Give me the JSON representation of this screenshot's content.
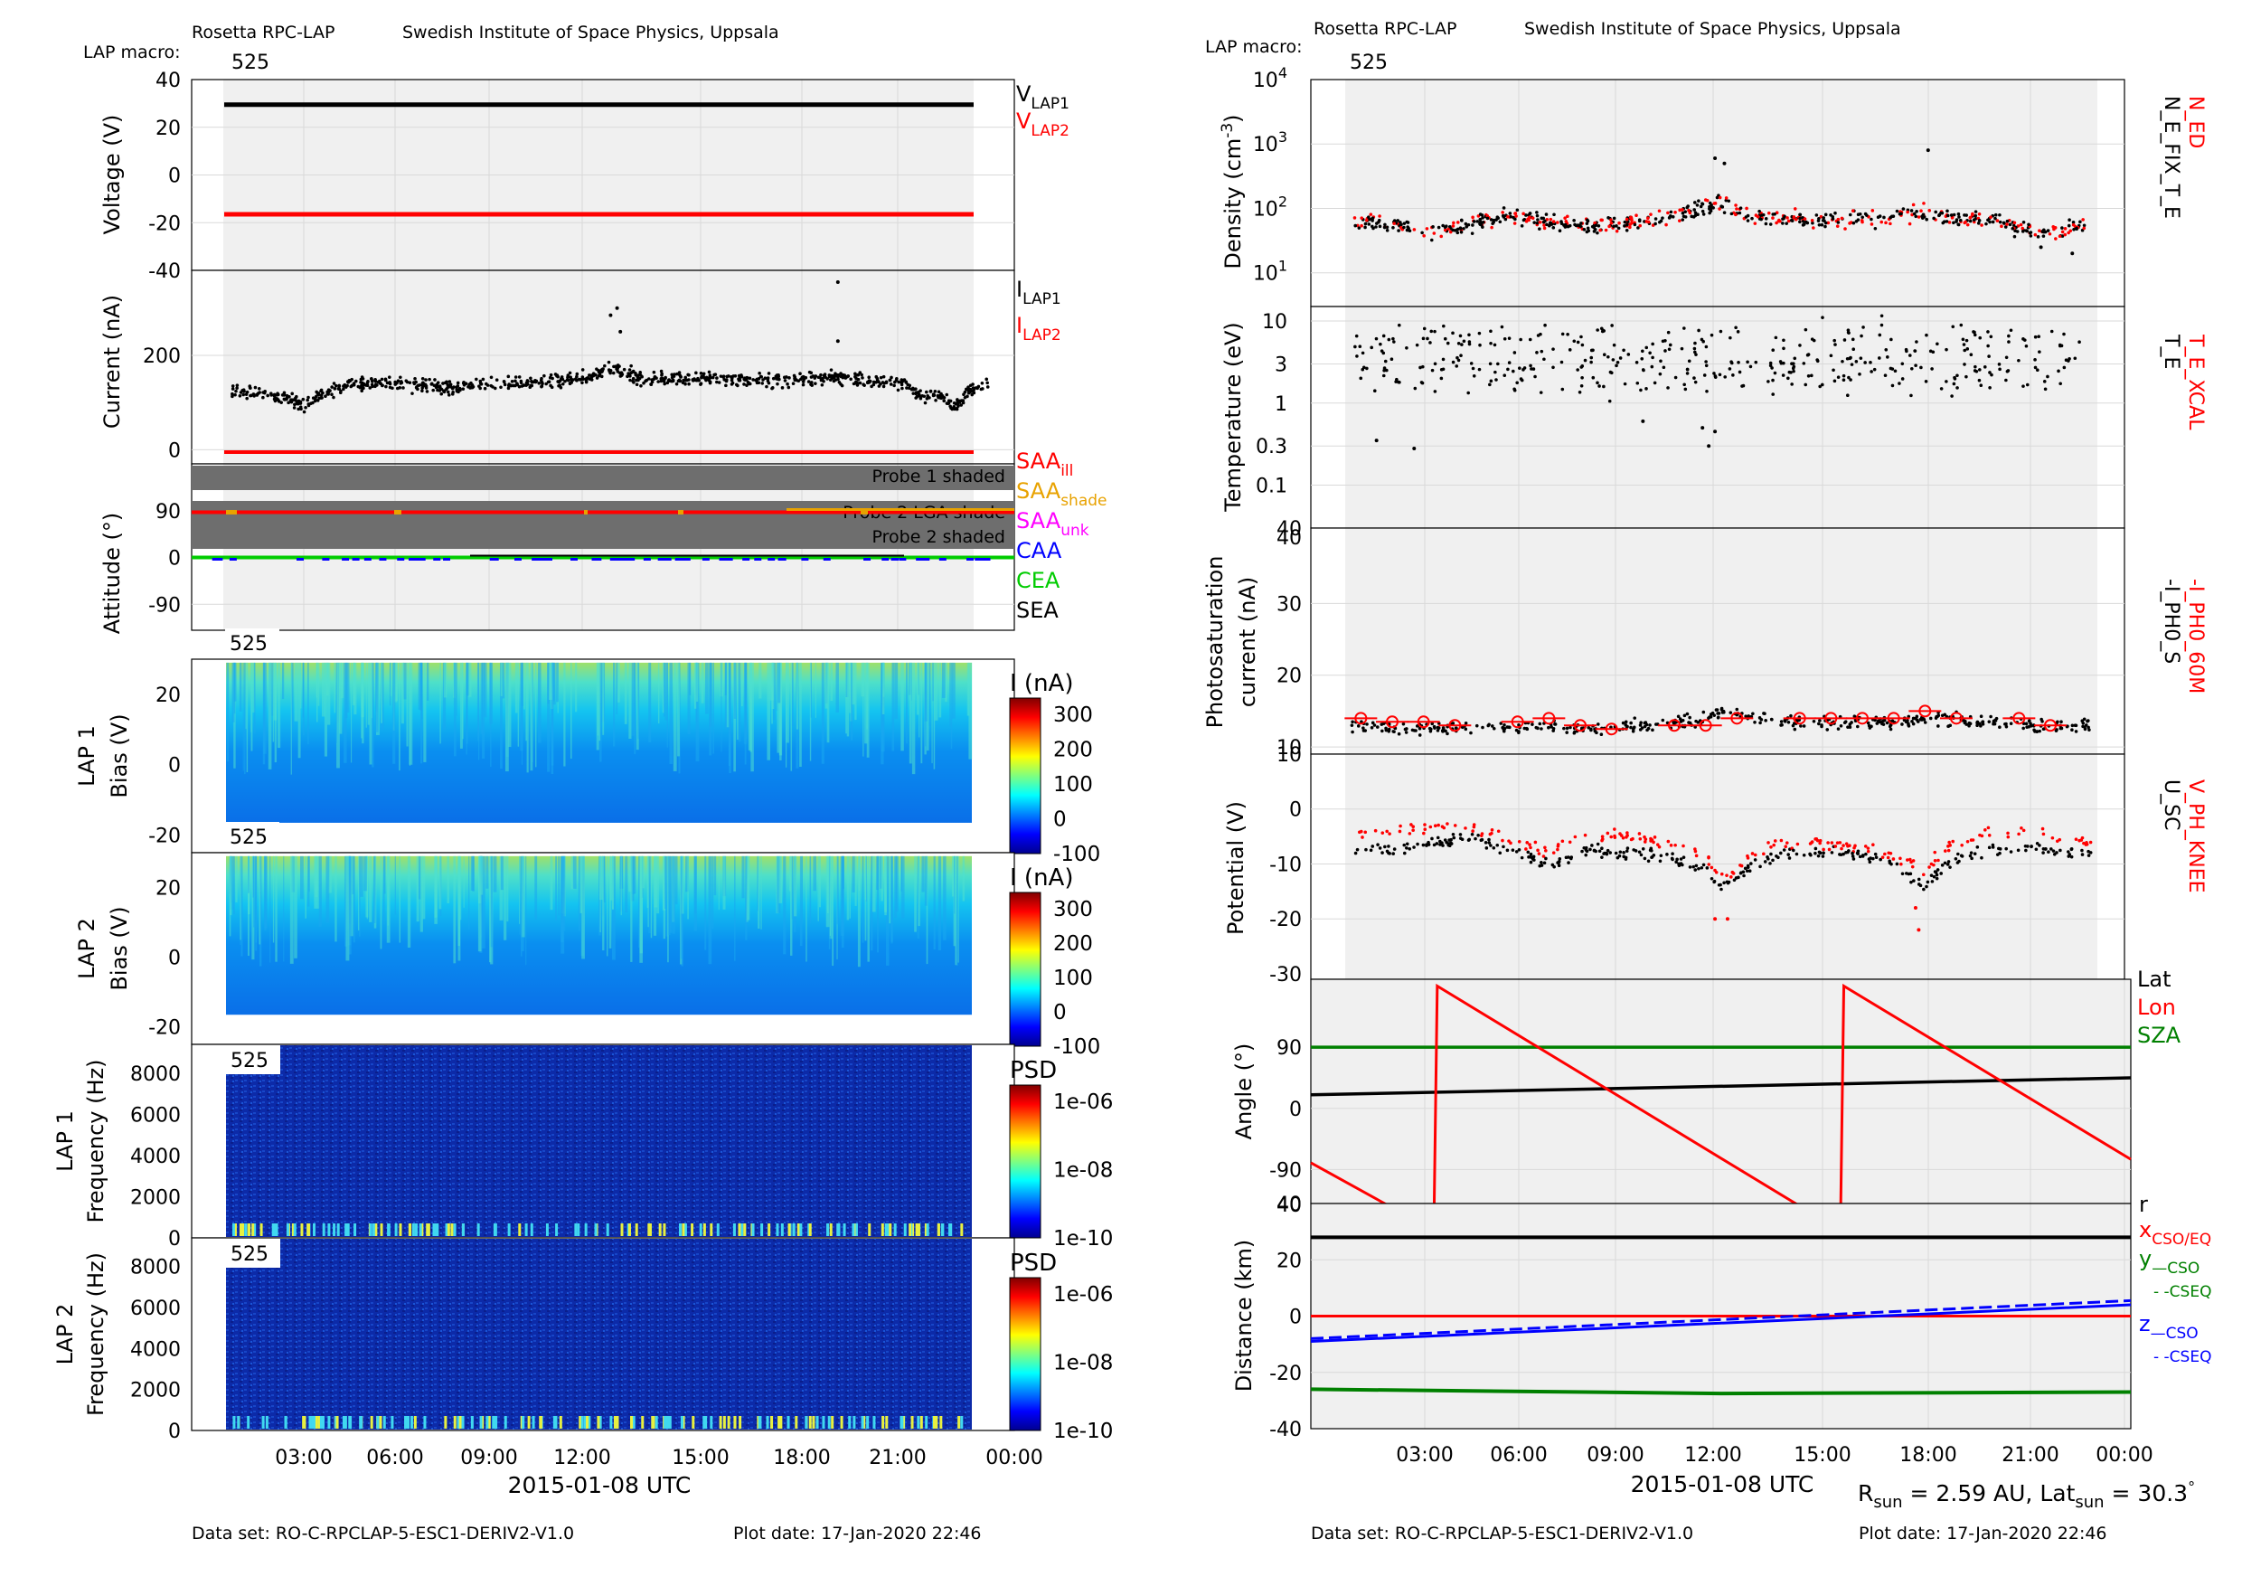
{
  "header": {
    "left": {
      "title": "Rosetta RPC-LAP",
      "institute": "Swedish Institute of Space Physics, Uppsala",
      "macro_label": "LAP macro:",
      "macro_value": "525"
    },
    "right": {
      "title": "Rosetta RPC-LAP",
      "institute": "Swedish Institute of Space Physics, Uppsala",
      "macro_label": "LAP macro:",
      "macro_value": "525"
    }
  },
  "footer": {
    "left": {
      "dataset": "Data set: RO-C-RPCLAP-5-ESC1-DERIV2-V1.0",
      "plotdate": "Plot date: 17-Jan-2020 22:46"
    },
    "right": {
      "dataset": "Data set: RO-C-RPCLAP-5-ESC1-DERIV2-V1.0",
      "plotdate": "Plot date: 17-Jan-2020 22:46"
    }
  },
  "xaxis": {
    "ticks": [
      "03:00",
      "06:00",
      "09:00",
      "12:00",
      "15:00",
      "18:00",
      "21:00",
      "00:00"
    ],
    "label": "2015-01-08 UTC"
  },
  "rsun_note": {
    "r_sym": "R",
    "r_sub": "sun",
    "r_val": " = 2.59 AU, Lat",
    "lat_sub": "sun",
    "lat_val": " = 30.3",
    "deg": "°"
  },
  "colors": {
    "black": "#000000",
    "red": "#ff0000",
    "orange": "#e8a200",
    "magenta": "#ff00ff",
    "blue": "#0000ff",
    "green": "#00cc00",
    "darkgreen": "#008000",
    "panel_bg": "#f0f0f0",
    "shade": "#6e6e6e"
  },
  "chart_data": [
    {
      "id": "voltage",
      "type": "line",
      "ylabel": "Voltage (V)",
      "ylim": [
        -40,
        40
      ],
      "yticks": [
        "40",
        "20",
        "0",
        "-20",
        "-40"
      ],
      "series": [
        {
          "name": "V_LAP1",
          "value": 29.5,
          "color": "#000000"
        },
        {
          "name": "V_LAP2",
          "value": -16.5,
          "color": "#ff0000"
        }
      ],
      "legend": [
        {
          "main": "V",
          "sub": "LAP1",
          "color": "#000000"
        },
        {
          "main": "V",
          "sub": "LAP2",
          "color": "#ff0000"
        }
      ]
    },
    {
      "id": "current",
      "type": "scatter",
      "ylabel": "Current (nA)",
      "ylim": [
        -30,
        380
      ],
      "yticks": [
        "200",
        "0"
      ],
      "x": [
        0.5,
        1,
        1.5,
        2,
        2.5,
        3,
        3.5,
        4,
        5,
        6,
        7,
        8,
        9,
        10,
        11,
        11.5,
        12,
        12.5,
        13,
        14,
        15,
        16,
        17,
        18,
        18.5,
        19,
        20,
        21,
        21.5,
        22,
        22.5,
        23,
        23.5
      ],
      "values": [
        125,
        120,
        115,
        105,
        95,
        115,
        130,
        140,
        140,
        135,
        130,
        140,
        140,
        145,
        150,
        165,
        170,
        160,
        150,
        150,
        150,
        150,
        145,
        150,
        155,
        150,
        145,
        140,
        115,
        115,
        90,
        125,
        140
      ],
      "outliers": [
        [
          11.9,
          285
        ],
        [
          12.1,
          300
        ],
        [
          12.2,
          250
        ],
        [
          18.9,
          355
        ],
        [
          18.9,
          230
        ]
      ],
      "lap2_value": -5,
      "legend": [
        {
          "main": "I",
          "sub": "LAP1",
          "color": "#000000"
        },
        {
          "main": "I",
          "sub": "LAP2",
          "color": "#ff0000"
        }
      ]
    },
    {
      "id": "attitude",
      "type": "line",
      "ylabel": "Attitude (°)",
      "ylim": [
        -140,
        180
      ],
      "yticks": [
        "90",
        "0",
        "-90"
      ],
      "shade_labels": [
        "Probe 1 shaded",
        "Probe 2 LGA shade",
        "Probe 2 shaded"
      ],
      "saa_value": 87,
      "caa_value": 0,
      "cea_value": 0,
      "legend": [
        {
          "main": "SAA",
          "sub": "ill",
          "color": "#ff0000"
        },
        {
          "main": "SAA",
          "sub": "shade",
          "color": "#e8a200"
        },
        {
          "main": "SAA",
          "sub": "unk",
          "color": "#ff00ff"
        },
        {
          "main": "CAA",
          "sub": "",
          "color": "#0000ff"
        },
        {
          "main": "CEA",
          "sub": "",
          "color": "#00cc00"
        },
        {
          "main": "SEA",
          "sub": "",
          "color": "#000000"
        }
      ]
    },
    {
      "id": "lap1_sweep",
      "type": "heatmap",
      "ylabel": "LAP 1",
      "ylabel2": "Bias (V)",
      "ylim": [
        -25,
        30
      ],
      "yticks": [
        "20",
        "0",
        "-20"
      ],
      "macro": "525",
      "cbar_label": "I (nA)",
      "cbar_ticks": [
        "300",
        "200",
        "100",
        "0",
        "-100"
      ]
    },
    {
      "id": "lap2_sweep",
      "type": "heatmap",
      "ylabel": "LAP 2",
      "ylabel2": "Bias (V)",
      "ylim": [
        -25,
        30
      ],
      "yticks": [
        "20",
        "0",
        "-20"
      ],
      "macro": "525",
      "cbar_label": "I (nA)",
      "cbar_ticks": [
        "300",
        "200",
        "100",
        "0",
        "-100"
      ]
    },
    {
      "id": "lap1_psd",
      "type": "heatmap",
      "ylabel": "LAP 1",
      "ylabel2": "Frequency (Hz)",
      "ylim": [
        0,
        9400
      ],
      "yticks": [
        "8000",
        "6000",
        "4000",
        "2000",
        "0"
      ],
      "macro": "525",
      "cbar_label": "PSD",
      "cbar_ticks": [
        "1e-06",
        "1e-08",
        "1e-10"
      ]
    },
    {
      "id": "lap2_psd",
      "type": "heatmap",
      "ylabel": "LAP 2",
      "ylabel2": "Frequency (Hz)",
      "ylim": [
        0,
        9400
      ],
      "yticks": [
        "8000",
        "6000",
        "4000",
        "2000",
        "0"
      ],
      "macro": "525",
      "cbar_label": "PSD",
      "cbar_ticks": [
        "1e-06",
        "1e-08",
        "1e-10"
      ]
    },
    {
      "id": "density",
      "type": "scatter",
      "ylabel": "Density (cm",
      "ylabel_sup": "-3",
      "ylabel_end": ")",
      "scale": "log",
      "ylim": [
        3,
        10000
      ],
      "x": [
        0.5,
        1,
        1.5,
        2,
        2.5,
        3,
        3.5,
        4,
        5,
        6,
        7,
        8,
        9,
        10,
        11,
        11.5,
        12,
        12.5,
        13,
        14,
        15,
        16,
        17,
        18,
        18.5,
        19,
        20,
        21,
        21.5,
        22,
        22.5,
        23,
        23.5
      ],
      "values": [
        65,
        60,
        55,
        50,
        45,
        45,
        50,
        55,
        75,
        70,
        55,
        55,
        60,
        70,
        85,
        105,
        115,
        95,
        75,
        70,
        65,
        65,
        70,
        80,
        85,
        75,
        70,
        60,
        50,
        45,
        40,
        45,
        55
      ],
      "outliers": [
        [
          11.8,
          600
        ],
        [
          12.1,
          500
        ],
        [
          18.6,
          800
        ],
        [
          22.2,
          25
        ],
        [
          23.2,
          20
        ]
      ],
      "legend": [
        {
          "text": "N_ED",
          "color": "#ff0000"
        },
        {
          "text": "N_E_FIX_T_E",
          "color": "#000000"
        }
      ]
    },
    {
      "id": "temperature",
      "type": "scatter",
      "ylabel": "Temperature (eV)",
      "scale": "log",
      "ylim": [
        0.03,
        15
      ],
      "yticks": [
        "10",
        "3",
        "1",
        "0.3",
        "0.1"
      ],
      "typical_range": [
        1.5,
        8
      ],
      "outliers": [
        [
          1.0,
          0.35
        ],
        [
          2.2,
          0.28
        ],
        [
          9.5,
          0.6
        ],
        [
          11.4,
          0.5
        ],
        [
          11.6,
          0.3
        ],
        [
          11.8,
          0.45
        ]
      ],
      "legend": [
        {
          "text": "T_E_XCAL",
          "color": "#ff0000"
        },
        {
          "text": "T_E",
          "color": "#000000"
        }
      ]
    },
    {
      "id": "photosat",
      "type": "scatter",
      "ylabel": "Photosaturation",
      "ylabel2": "current (nA)",
      "ylim": [
        10,
        40
      ],
      "yticks": [
        "40",
        "30",
        "20",
        "10"
      ],
      "x": [
        0.5,
        2,
        4,
        6,
        8,
        10,
        11.5,
        12,
        13,
        14,
        16,
        18,
        19,
        20,
        22,
        23.5
      ],
      "values": [
        13,
        12.5,
        12.5,
        13,
        12.5,
        13,
        14,
        15,
        14,
        13.5,
        13.5,
        13.5,
        14,
        13.5,
        13,
        13
      ],
      "red_x": [
        0.5,
        1.5,
        2.5,
        3.5,
        5.5,
        6.5,
        7.5,
        8.5,
        10.5,
        11.5,
        12.5,
        14.5,
        15.5,
        16.5,
        17.5,
        18.5,
        19.5,
        21.5,
        22.5
      ],
      "red_values": [
        14,
        13.5,
        13.5,
        13,
        13.5,
        14,
        13,
        12.5,
        13,
        13,
        14,
        14,
        14,
        14,
        14,
        15,
        14,
        14,
        13
      ],
      "legend": [
        {
          "text": "-I_PH0_60M",
          "color": "#ff0000"
        },
        {
          "text": "-I_PH0_S",
          "color": "#000000"
        }
      ]
    },
    {
      "id": "potential",
      "type": "scatter",
      "ylabel": "Potential (V)",
      "ylim": [
        -31,
        10
      ],
      "yticks": [
        "10",
        "0",
        "-10",
        "-20",
        "-30"
      ],
      "x": [
        0,
        0.5,
        1,
        1.5,
        2,
        2.5,
        3,
        3.5,
        4,
        4.5,
        5,
        5.5,
        6,
        6.5,
        7,
        7.5,
        8,
        8.5,
        9,
        9.5,
        10,
        10.5,
        11,
        11.5,
        12,
        12.5,
        13,
        13.5,
        14,
        14.5,
        15,
        15.5,
        16,
        16.5,
        17,
        17.5,
        18,
        18.5,
        19,
        19.5,
        20,
        20.5,
        21,
        21.5,
        22,
        22.5,
        23,
        23.5
      ],
      "values": [
        -8,
        -7.5,
        -7,
        -7.5,
        -7,
        -6.5,
        -6,
        -5.5,
        -5,
        -6,
        -7,
        -8,
        -9,
        -11,
        -9,
        -8,
        -7.5,
        -8,
        -8,
        -8,
        -8.5,
        -9,
        -10,
        -11,
        -14,
        -13,
        -10,
        -9,
        -8.5,
        -8,
        -8,
        -8,
        -8,
        -8.5,
        -9,
        -10,
        -12,
        -14,
        -11,
        -9,
        -8,
        -7.5,
        -7,
        -7,
        -7,
        -7.5,
        -8,
        -8
      ],
      "red_values": [
        -5,
        -4.5,
        -4,
        -4,
        -3.5,
        -3.5,
        -3,
        -3,
        -3,
        -4,
        -5,
        -6,
        -7,
        -8,
        -6,
        -5,
        -5,
        -4.5,
        -5,
        -5,
        -6,
        -6,
        -7,
        -9,
        -12,
        -11,
        -8,
        -7,
        -6,
        -6,
        -6,
        -6.5,
        -6.5,
        -7,
        -8,
        -9,
        -10,
        -12,
        -8,
        -6,
        -5,
        -4,
        -4,
        -4,
        -4,
        -5,
        -5.5,
        -6
      ],
      "outliers": [
        [
          18.2,
          -18
        ],
        [
          18.3,
          -22
        ],
        [
          11.8,
          -20
        ],
        [
          12.2,
          -20
        ]
      ],
      "legend": [
        {
          "text": "V_PH_KNEE",
          "color": "#ff0000"
        },
        {
          "text": "U_SC",
          "color": "#000000"
        }
      ]
    },
    {
      "id": "angle",
      "type": "line",
      "ylabel": "Angle (°)",
      "ylim": [
        -140,
        190
      ],
      "yticks": [
        "90",
        "0",
        "-90"
      ],
      "lat": [
        [
          0,
          20
        ],
        [
          24,
          45
        ]
      ],
      "sza_value": 90,
      "lon": [
        [
          0,
          -80
        ],
        [
          3.6,
          -180
        ],
        [
          3.7,
          180
        ],
        [
          15.5,
          -180
        ],
        [
          15.6,
          180
        ],
        [
          24,
          -75
        ]
      ],
      "legend": [
        {
          "text": "Lat",
          "color": "#000000"
        },
        {
          "text": "Lon",
          "color": "#ff0000"
        },
        {
          "text": "SZA",
          "color": "#008000"
        }
      ]
    },
    {
      "id": "distance",
      "type": "line",
      "ylabel": "Distance (km)",
      "ylim": [
        -40,
        40
      ],
      "yticks": [
        "40",
        "20",
        "0",
        "-20",
        "-40"
      ],
      "r": [
        [
          0,
          28
        ],
        [
          24,
          28
        ]
      ],
      "x_cso": [
        [
          0,
          0
        ],
        [
          24,
          0
        ]
      ],
      "y_cso": [
        [
          0,
          -26
        ],
        [
          12,
          -27.5
        ],
        [
          24,
          -27
        ]
      ],
      "z_cso": [
        [
          0,
          -9
        ],
        [
          24,
          4
        ]
      ],
      "z_cseq": [
        [
          0,
          -8
        ],
        [
          24,
          5.5
        ]
      ],
      "legend": [
        {
          "main": "r",
          "sub": "",
          "color": "#000000"
        },
        {
          "main": "x",
          "sub": "CSO/EQ",
          "color": "#ff0000"
        },
        {
          "main": "y",
          "sub": "—CSO",
          "color": "#008000"
        },
        {
          "main": "",
          "sub": "- -CSEQ",
          "color": "#008000"
        },
        {
          "main": "z",
          "sub": "—CSO",
          "color": "#0000ff"
        },
        {
          "main": "",
          "sub": "- -CSEQ",
          "color": "#0000ff"
        }
      ]
    }
  ]
}
